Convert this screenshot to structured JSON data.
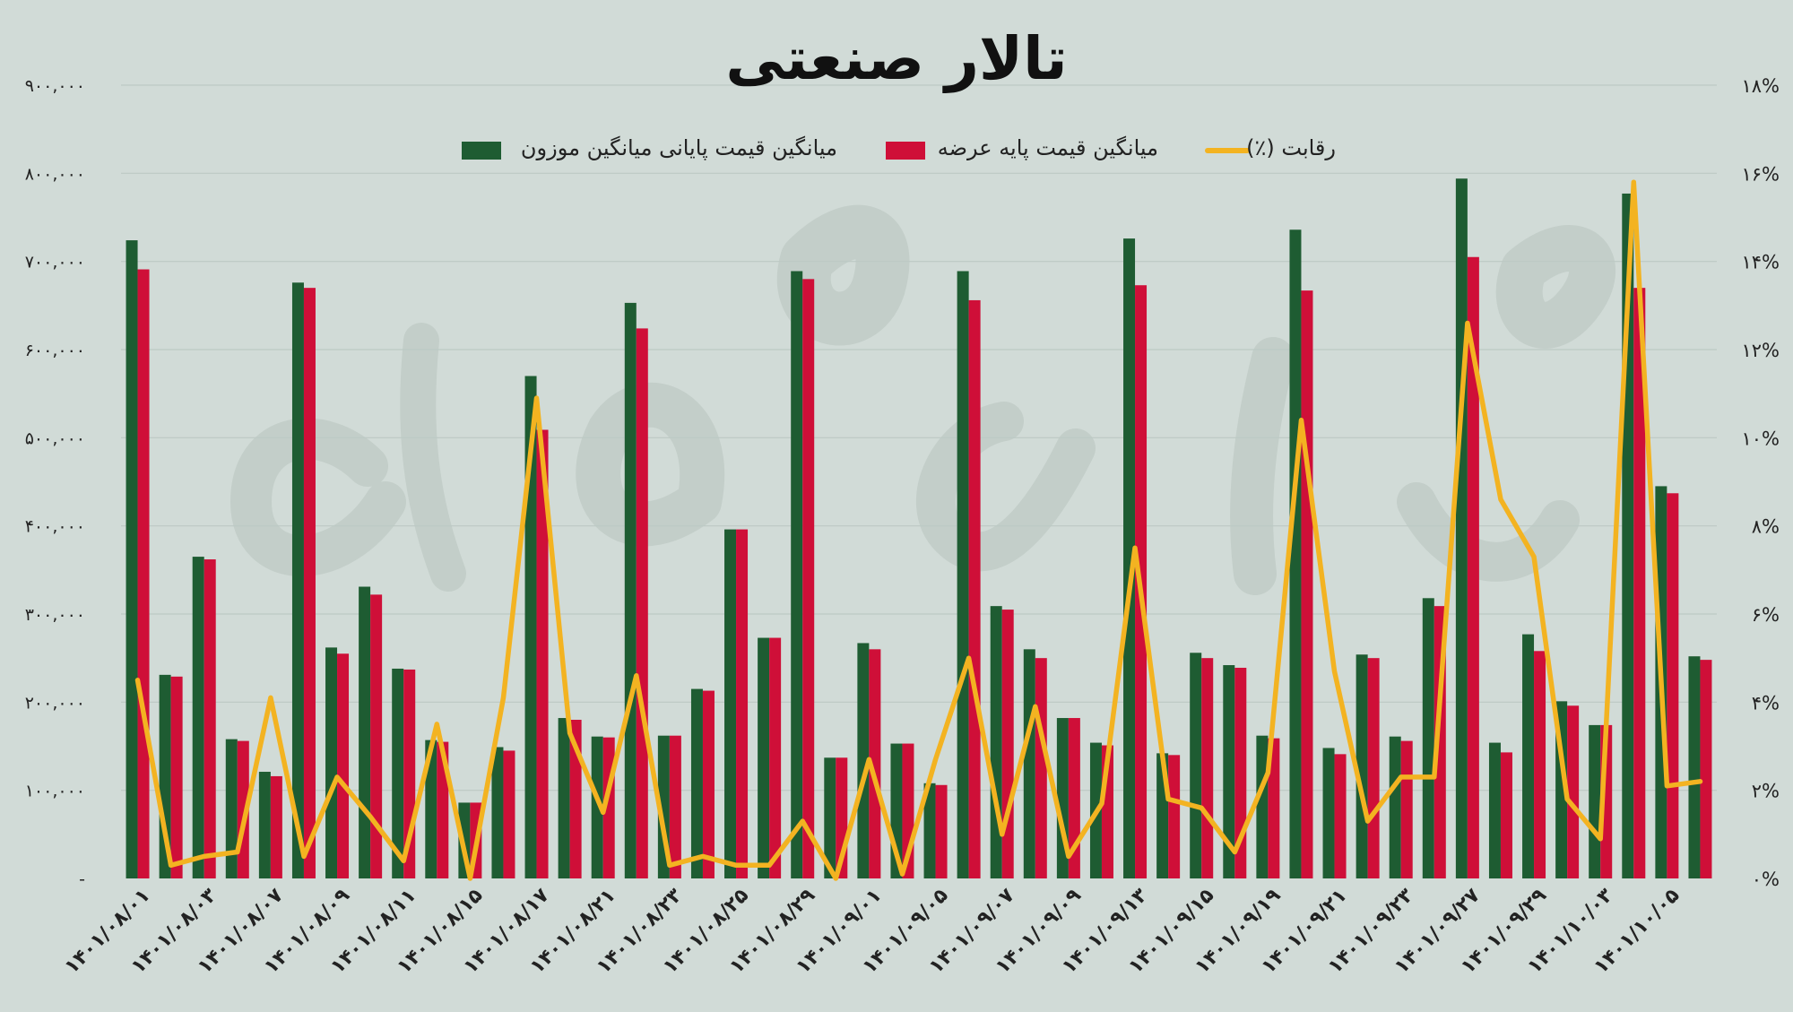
{
  "chart_data": {
    "type": "bar",
    "title": "تالار صنعتی",
    "colors": {
      "background": "#d1dbd7",
      "weighted_final_price": "#1e5c32",
      "base_price": "#cf0f38",
      "competition": "#f3b321"
    },
    "legend": {
      "placement": "top-center",
      "items": [
        {
          "key": "weighted_final_price",
          "label": "میانگین قیمت پایانی میانگین موزون"
        },
        {
          "key": "base_price",
          "label": "میانگین قیمت پایه عرضه"
        },
        {
          "key": "competition",
          "label": "رقابت (٪)"
        }
      ]
    },
    "left_axis": {
      "ylim": [
        0,
        900000
      ],
      "ticks": [
        "-",
        "۱۰۰,۰۰۰",
        "۲۰۰,۰۰۰",
        "۳۰۰,۰۰۰",
        "۴۰۰,۰۰۰",
        "۵۰۰,۰۰۰",
        "۶۰۰,۰۰۰",
        "۷۰۰,۰۰۰",
        "۸۰۰,۰۰۰",
        "۹۰۰,۰۰۰"
      ]
    },
    "right_axis": {
      "ylim": [
        0,
        18
      ],
      "ticks": [
        "۰%",
        "۲%",
        "۴%",
        "۶%",
        "۸%",
        "۱۰%",
        "۱۲%",
        "۱۴%",
        "۱۶%",
        "۱۸%"
      ]
    },
    "grid": true,
    "category_labels": [
      "۱۴۰۱/۰۸/۰۱",
      "۱۴۰۱/۰۸/۰۳",
      "۱۴۰۱/۰۸/۰۷",
      "۱۴۰۱/۰۸/۰۹",
      "۱۴۰۱/۰۸/۱۱",
      "۱۴۰۱/۰۸/۱۵",
      "۱۴۰۱/۰۸/۱۷",
      "۱۴۰۱/۰۸/۲۱",
      "۱۴۰۱/۰۸/۲۳",
      "۱۴۰۱/۰۸/۲۵",
      "۱۴۰۱/۰۸/۲۹",
      "۱۴۰۱/۰۹/۰۱",
      "۱۴۰۱/۰۹/۰۵",
      "۱۴۰۱/۰۹/۰۷",
      "۱۴۰۱/۰۹/۰۹",
      "۱۴۰۱/۰۹/۱۳",
      "۱۴۰۱/۰۹/۱۵",
      "۱۴۰۱/۰۹/۱۹",
      "۱۴۰۱/۰۹/۲۱",
      "۱۴۰۱/۰۹/۲۳",
      "۱۴۰۱/۰۹/۲۷",
      "۱۴۰۱/۰۹/۲۹",
      "۱۴۰۱/۱۰/۰۳",
      "۱۴۰۱/۱۰/۰۵"
    ],
    "series": [
      {
        "name": "میانگین قیمت پایانی میانگین موزون",
        "axis": "left",
        "values": [
          724000,
          231000,
          365000,
          158000,
          121000,
          676000,
          262000,
          331000,
          238000,
          157000,
          86000,
          149000,
          570000,
          182000,
          161000,
          653000,
          162000,
          215000,
          396000,
          273000,
          689000,
          137000,
          267000,
          153000,
          108000,
          689000,
          309000,
          260000,
          182000,
          154000,
          726000,
          142000,
          256000,
          242000,
          162000,
          736000,
          148000,
          254000,
          161000,
          318000,
          794000,
          154000,
          277000,
          201000,
          174000,
          777000,
          445000,
          252000
        ]
      },
      {
        "name": "میانگین قیمت پایه عرضه",
        "axis": "left",
        "values": [
          691000,
          229000,
          362000,
          156000,
          116000,
          670000,
          255000,
          322000,
          237000,
          155000,
          86000,
          145000,
          509000,
          180000,
          160000,
          624000,
          162000,
          213000,
          396000,
          273000,
          680000,
          137000,
          260000,
          153000,
          106000,
          656000,
          305000,
          250000,
          182000,
          151000,
          673000,
          140000,
          250000,
          239000,
          159000,
          667000,
          141000,
          250000,
          156000,
          309000,
          705000,
          143000,
          258000,
          196000,
          174000,
          670000,
          437000,
          248000
        ]
      },
      {
        "name": "رقابت (٪)",
        "type": "line",
        "axis": "right",
        "values": [
          4.5,
          0.3,
          0.5,
          0.6,
          4.1,
          0.5,
          2.3,
          1.4,
          0.4,
          3.5,
          0.0,
          4.1,
          10.9,
          3.3,
          1.5,
          4.6,
          0.3,
          0.5,
          0.3,
          0.3,
          1.3,
          0.0,
          2.7,
          0.1,
          2.7,
          5.0,
          1.0,
          3.9,
          0.5,
          1.7,
          7.5,
          1.8,
          1.6,
          0.6,
          2.4,
          10.4,
          4.7,
          1.3,
          2.3,
          2.3,
          12.6,
          8.6,
          7.3,
          1.8,
          0.9,
          15.8,
          2.1,
          2.2
        ]
      }
    ]
  }
}
